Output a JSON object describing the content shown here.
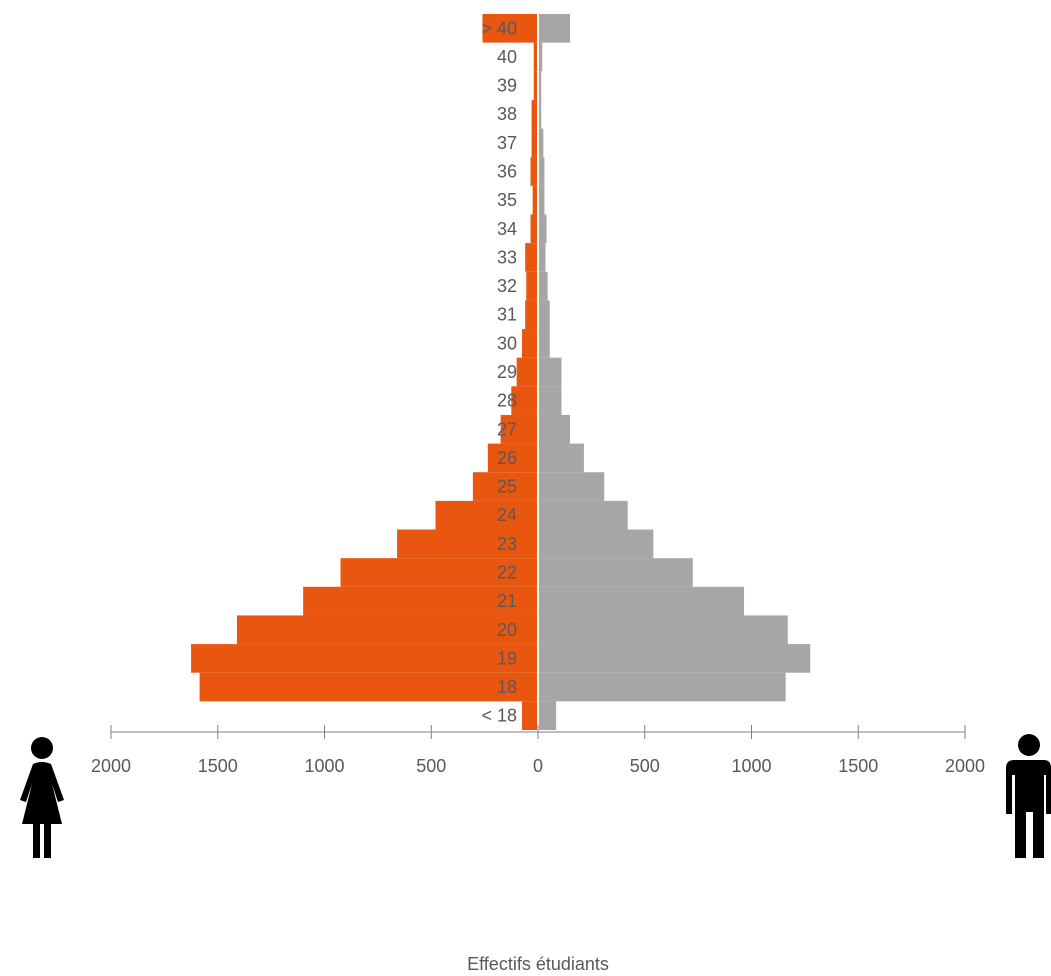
{
  "chart_data": {
    "type": "bar",
    "orientation": "horizontal-population-pyramid",
    "categories": [
      "< 18",
      "18",
      "19",
      "20",
      "21",
      "22",
      "23",
      "24",
      "25",
      "26",
      "27",
      "28",
      "29",
      "30",
      "31",
      "32",
      "33",
      "34",
      "35",
      "36",
      "37",
      "38",
      "39",
      "40",
      "> 40"
    ],
    "series": [
      {
        "color": "#E8560F",
        "values": [
          75,
          1585,
          1625,
          1410,
          1100,
          925,
          660,
          480,
          305,
          235,
          175,
          125,
          100,
          75,
          60,
          55,
          60,
          35,
          25,
          35,
          30,
          30,
          20,
          20,
          260
        ]
      },
      {
        "color": "#A6A6A6",
        "values": [
          85,
          1160,
          1275,
          1170,
          965,
          725,
          540,
          420,
          310,
          215,
          150,
          110,
          110,
          55,
          55,
          45,
          35,
          40,
          30,
          30,
          25,
          15,
          15,
          20,
          150
        ]
      }
    ],
    "xlabel": "Effectifs étudiants",
    "xticks": [
      "2000",
      "1500",
      "1000",
      "500",
      "0",
      "500",
      "1000",
      "1500",
      "2000"
    ],
    "xlim": [
      -2000,
      2000
    ],
    "legend": "none",
    "grid": false
  },
  "icons": {
    "left": "female-person-icon",
    "right": "male-person-icon"
  }
}
